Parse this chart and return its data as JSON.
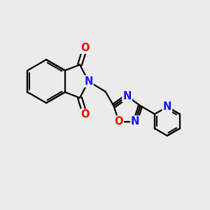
{
  "bg_color": "#ebebeb",
  "bond_color": "#000000",
  "N_color": "#1414ff",
  "O_color": "#ff0000",
  "bond_width": 1.6,
  "font_size_atom": 10.5,
  "fig_bg": "#ebebeb",
  "xlim": [
    0,
    10
  ],
  "ylim": [
    0,
    10
  ]
}
